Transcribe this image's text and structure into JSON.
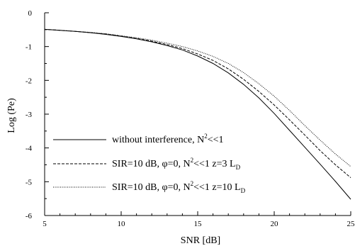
{
  "chart_data": {
    "type": "line",
    "xlabel": "SNR [dB]",
    "ylabel": "Log (Pe)",
    "xlim": [
      5,
      25
    ],
    "ylim": [
      -6,
      0
    ],
    "xticks": [
      5,
      10,
      15,
      20,
      25
    ],
    "yticks": [
      0,
      -1,
      -2,
      -3,
      -4,
      -5,
      -6
    ],
    "grid": false,
    "legend_position": "bottom-left",
    "series": [
      {
        "name": "without interference, N²<<1",
        "style": "solid",
        "color": "#000000",
        "x": [
          5,
          6,
          7,
          8,
          9,
          10,
          11,
          12,
          13,
          14,
          15,
          16,
          17,
          18,
          19,
          20,
          21,
          22,
          23,
          24,
          25
        ],
        "y": [
          -0.49,
          -0.52,
          -0.55,
          -0.59,
          -0.64,
          -0.7,
          -0.77,
          -0.86,
          -0.97,
          -1.1,
          -1.28,
          -1.5,
          -1.78,
          -2.12,
          -2.52,
          -2.98,
          -3.48,
          -3.98,
          -4.48,
          -4.99,
          -5.52
        ]
      },
      {
        "name": "SIR=10 dB, φ=0, N²<<1 z=3 L",
        "name_sub": "D",
        "style": "dashed",
        "color": "#000000",
        "x": [
          5,
          6,
          7,
          8,
          9,
          10,
          11,
          12,
          13,
          14,
          15,
          16,
          17,
          18,
          19,
          20,
          21,
          22,
          23,
          24,
          25
        ],
        "y": [
          -0.49,
          -0.52,
          -0.55,
          -0.59,
          -0.63,
          -0.69,
          -0.76,
          -0.84,
          -0.94,
          -1.06,
          -1.22,
          -1.41,
          -1.66,
          -1.97,
          -2.33,
          -2.73,
          -3.17,
          -3.62,
          -4.08,
          -4.5,
          -4.88
        ]
      },
      {
        "name": "SIR=10 dB, φ=0, N²<<1 z=10 L",
        "name_sub": "D",
        "style": "dotted",
        "color": "#000000",
        "x": [
          5,
          6,
          7,
          8,
          9,
          10,
          11,
          12,
          13,
          14,
          15,
          16,
          17,
          18,
          19,
          20,
          21,
          22,
          23,
          24,
          25
        ],
        "y": [
          -0.49,
          -0.52,
          -0.55,
          -0.58,
          -0.62,
          -0.68,
          -0.74,
          -0.81,
          -0.9,
          -1.0,
          -1.13,
          -1.29,
          -1.5,
          -1.77,
          -2.1,
          -2.47,
          -2.89,
          -3.34,
          -3.77,
          -4.18,
          -4.55
        ]
      }
    ]
  }
}
